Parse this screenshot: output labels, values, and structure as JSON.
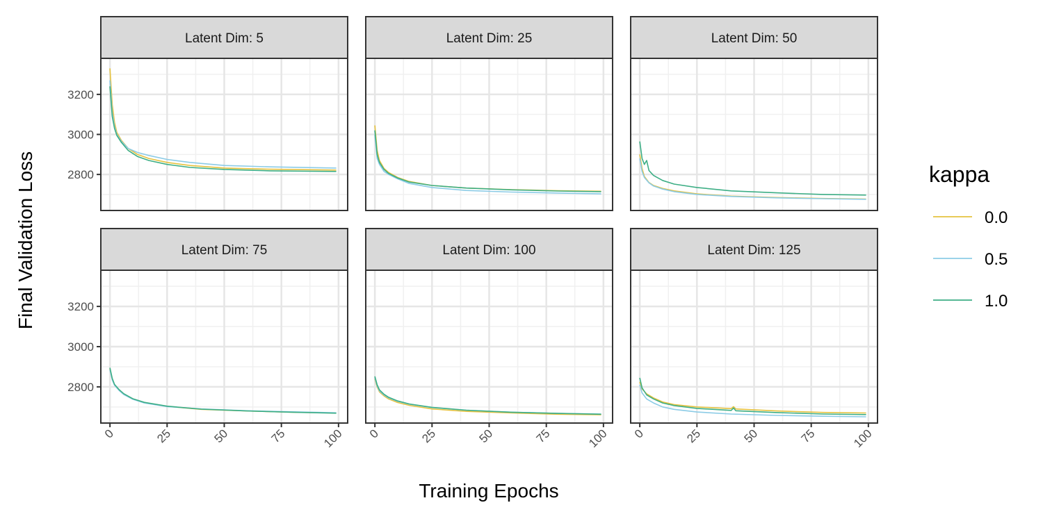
{
  "chart_data": {
    "type": "line",
    "xlabel": "Training Epochs",
    "ylabel": "Final Validation Loss",
    "x_ticks": [
      0,
      25,
      50,
      75,
      100
    ],
    "y_ticks": [
      2800,
      3000,
      3200
    ],
    "xlim": [
      -4,
      104
    ],
    "ylim": [
      2620,
      3380
    ],
    "grid": true,
    "legend": {
      "title": "kappa",
      "position": "right",
      "entries": [
        {
          "label": "0.0",
          "color": "#E5C23F"
        },
        {
          "label": "0.5",
          "color": "#8BCBE6"
        },
        {
          "label": "1.0",
          "color": "#3DAE85"
        }
      ]
    },
    "panels": [
      {
        "title": "Latent Dim: 5",
        "series": [
          {
            "name": "0.0",
            "color": "#E5C23F",
            "points": [
              [
                0,
                3330
              ],
              [
                1,
                3150
              ],
              [
                2,
                3060
              ],
              [
                3,
                3010
              ],
              [
                5,
                2970
              ],
              [
                8,
                2930
              ],
              [
                12,
                2900
              ],
              [
                17,
                2880
              ],
              [
                25,
                2860
              ],
              [
                35,
                2845
              ],
              [
                50,
                2832
              ],
              [
                70,
                2826
              ],
              [
                99,
                2822
              ]
            ]
          },
          {
            "name": "0.5",
            "color": "#8BCBE6",
            "points": [
              [
                0,
                3270
              ],
              [
                1,
                3110
              ],
              [
                2,
                3040
              ],
              [
                3,
                3000
              ],
              [
                5,
                2965
              ],
              [
                8,
                2930
              ],
              [
                12,
                2910
              ],
              [
                17,
                2895
              ],
              [
                25,
                2875
              ],
              [
                35,
                2860
              ],
              [
                50,
                2845
              ],
              [
                70,
                2838
              ],
              [
                99,
                2832
              ]
            ]
          },
          {
            "name": "1.0",
            "color": "#3DAE85",
            "points": [
              [
                0,
                3240
              ],
              [
                1,
                3090
              ],
              [
                2,
                3030
              ],
              [
                3,
                2995
              ],
              [
                5,
                2960
              ],
              [
                8,
                2920
              ],
              [
                12,
                2890
              ],
              [
                17,
                2870
              ],
              [
                25,
                2850
              ],
              [
                35,
                2835
              ],
              [
                50,
                2825
              ],
              [
                70,
                2818
              ],
              [
                99,
                2815
              ]
            ]
          }
        ]
      },
      {
        "title": "Latent Dim: 25",
        "series": [
          {
            "name": "0.0",
            "color": "#E5C23F",
            "points": [
              [
                0,
                3045
              ],
              [
                1,
                2920
              ],
              [
                2,
                2870
              ],
              [
                4,
                2830
              ],
              [
                6,
                2810
              ],
              [
                10,
                2785
              ],
              [
                15,
                2765
              ],
              [
                25,
                2745
              ],
              [
                40,
                2732
              ],
              [
                60,
                2724
              ],
              [
                80,
                2719
              ],
              [
                99,
                2716
              ]
            ]
          },
          {
            "name": "0.5",
            "color": "#8BCBE6",
            "points": [
              [
                0,
                3000
              ],
              [
                1,
                2880
              ],
              [
                2,
                2850
              ],
              [
                4,
                2815
              ],
              [
                6,
                2800
              ],
              [
                10,
                2778
              ],
              [
                15,
                2755
              ],
              [
                25,
                2735
              ],
              [
                40,
                2720
              ],
              [
                60,
                2712
              ],
              [
                80,
                2707
              ],
              [
                99,
                2703
              ]
            ]
          },
          {
            "name": "1.0",
            "color": "#3DAE85",
            "points": [
              [
                0,
                3020
              ],
              [
                1,
                2900
              ],
              [
                2,
                2860
              ],
              [
                4,
                2825
              ],
              [
                6,
                2805
              ],
              [
                10,
                2782
              ],
              [
                15,
                2762
              ],
              [
                25,
                2745
              ],
              [
                40,
                2732
              ],
              [
                60,
                2723
              ],
              [
                80,
                2717
              ],
              [
                99,
                2714
              ]
            ]
          }
        ]
      },
      {
        "title": "Latent Dim: 50",
        "series": [
          {
            "name": "0.0",
            "color": "#E5C23F",
            "points": [
              [
                0,
                2900
              ],
              [
                1,
                2830
              ],
              [
                2,
                2790
              ],
              [
                4,
                2760
              ],
              [
                6,
                2745
              ],
              [
                10,
                2730
              ],
              [
                15,
                2718
              ],
              [
                25,
                2703
              ],
              [
                40,
                2692
              ],
              [
                60,
                2685
              ],
              [
                80,
                2680
              ],
              [
                99,
                2677
              ]
            ]
          },
          {
            "name": "0.5",
            "color": "#8BCBE6",
            "points": [
              [
                0,
                2880
              ],
              [
                1,
                2815
              ],
              [
                2,
                2785
              ],
              [
                4,
                2758
              ],
              [
                6,
                2742
              ],
              [
                10,
                2727
              ],
              [
                15,
                2714
              ],
              [
                25,
                2700
              ],
              [
                40,
                2690
              ],
              [
                60,
                2683
              ],
              [
                80,
                2679
              ],
              [
                99,
                2676
              ]
            ]
          },
          {
            "name": "1.0",
            "color": "#3DAE85",
            "points": [
              [
                0,
                2965
              ],
              [
                1,
                2880
              ],
              [
                2,
                2850
              ],
              [
                3,
                2870
              ],
              [
                4,
                2820
              ],
              [
                6,
                2795
              ],
              [
                10,
                2770
              ],
              [
                15,
                2752
              ],
              [
                25,
                2735
              ],
              [
                40,
                2718
              ],
              [
                60,
                2708
              ],
              [
                80,
                2700
              ],
              [
                99,
                2697
              ]
            ]
          }
        ]
      },
      {
        "title": "Latent Dim: 75",
        "series": [
          {
            "name": "0.0",
            "color": "#E5C23F",
            "points": [
              [
                0,
                2890
              ],
              [
                1,
                2840
              ],
              [
                2,
                2810
              ],
              [
                4,
                2785
              ],
              [
                6,
                2765
              ],
              [
                10,
                2740
              ],
              [
                15,
                2722
              ],
              [
                25,
                2703
              ],
              [
                40,
                2688
              ],
              [
                60,
                2680
              ],
              [
                80,
                2674
              ],
              [
                99,
                2670
              ]
            ]
          },
          {
            "name": "0.5",
            "color": "#8BCBE6",
            "points": [
              [
                0,
                2885
              ],
              [
                1,
                2835
              ],
              [
                2,
                2808
              ],
              [
                4,
                2782
              ],
              [
                6,
                2762
              ],
              [
                10,
                2738
              ],
              [
                15,
                2720
              ],
              [
                25,
                2702
              ],
              [
                40,
                2690
              ],
              [
                60,
                2681
              ],
              [
                80,
                2676
              ],
              [
                99,
                2671
              ]
            ]
          },
          {
            "name": "1.0",
            "color": "#3DAE85",
            "points": [
              [
                0,
                2895
              ],
              [
                1,
                2842
              ],
              [
                2,
                2812
              ],
              [
                4,
                2786
              ],
              [
                6,
                2766
              ],
              [
                10,
                2741
              ],
              [
                15,
                2723
              ],
              [
                25,
                2704
              ],
              [
                40,
                2689
              ],
              [
                60,
                2680
              ],
              [
                80,
                2674
              ],
              [
                99,
                2669
              ]
            ]
          }
        ]
      },
      {
        "title": "Latent Dim: 100",
        "series": [
          {
            "name": "0.0",
            "color": "#E5C23F",
            "points": [
              [
                0,
                2840
              ],
              [
                1,
                2800
              ],
              [
                2,
                2775
              ],
              [
                4,
                2755
              ],
              [
                6,
                2740
              ],
              [
                10,
                2722
              ],
              [
                15,
                2708
              ],
              [
                25,
                2690
              ],
              [
                40,
                2678
              ],
              [
                60,
                2670
              ],
              [
                80,
                2664
              ],
              [
                99,
                2661
              ]
            ]
          },
          {
            "name": "0.5",
            "color": "#8BCBE6",
            "points": [
              [
                0,
                2845
              ],
              [
                1,
                2805
              ],
              [
                2,
                2780
              ],
              [
                4,
                2760
              ],
              [
                6,
                2745
              ],
              [
                10,
                2728
              ],
              [
                15,
                2714
              ],
              [
                25,
                2697
              ],
              [
                40,
                2684
              ],
              [
                60,
                2674
              ],
              [
                80,
                2668
              ],
              [
                99,
                2665
              ]
            ]
          },
          {
            "name": "1.0",
            "color": "#3DAE85",
            "points": [
              [
                0,
                2852
              ],
              [
                1,
                2810
              ],
              [
                2,
                2785
              ],
              [
                4,
                2763
              ],
              [
                6,
                2748
              ],
              [
                10,
                2730
              ],
              [
                15,
                2715
              ],
              [
                25,
                2698
              ],
              [
                40,
                2684
              ],
              [
                60,
                2674
              ],
              [
                80,
                2668
              ],
              [
                99,
                2664
              ]
            ]
          }
        ]
      },
      {
        "title": "Latent Dim: 125",
        "series": [
          {
            "name": "0.0",
            "color": "#E5C23F",
            "points": [
              [
                0,
                2825
              ],
              [
                1,
                2790
              ],
              [
                3,
                2765
              ],
              [
                6,
                2745
              ],
              [
                10,
                2725
              ],
              [
                15,
                2712
              ],
              [
                25,
                2700
              ],
              [
                40,
                2692
              ],
              [
                41,
                2702
              ],
              [
                42,
                2690
              ],
              [
                60,
                2680
              ],
              [
                80,
                2673
              ],
              [
                99,
                2670
              ]
            ]
          },
          {
            "name": "0.5",
            "color": "#8BCBE6",
            "points": [
              [
                0,
                2810
              ],
              [
                1,
                2770
              ],
              [
                3,
                2740
              ],
              [
                6,
                2720
              ],
              [
                10,
                2700
              ],
              [
                15,
                2688
              ],
              [
                25,
                2675
              ],
              [
                40,
                2665
              ],
              [
                60,
                2658
              ],
              [
                80,
                2654
              ],
              [
                99,
                2651
              ]
            ]
          },
          {
            "name": "1.0",
            "color": "#3DAE85",
            "points": [
              [
                0,
                2845
              ],
              [
                1,
                2795
              ],
              [
                3,
                2760
              ],
              [
                6,
                2740
              ],
              [
                10,
                2720
              ],
              [
                15,
                2707
              ],
              [
                25,
                2693
              ],
              [
                40,
                2683
              ],
              [
                41,
                2695
              ],
              [
                42,
                2681
              ],
              [
                60,
                2672
              ],
              [
                80,
                2665
              ],
              [
                99,
                2662
              ]
            ]
          }
        ]
      }
    ]
  }
}
